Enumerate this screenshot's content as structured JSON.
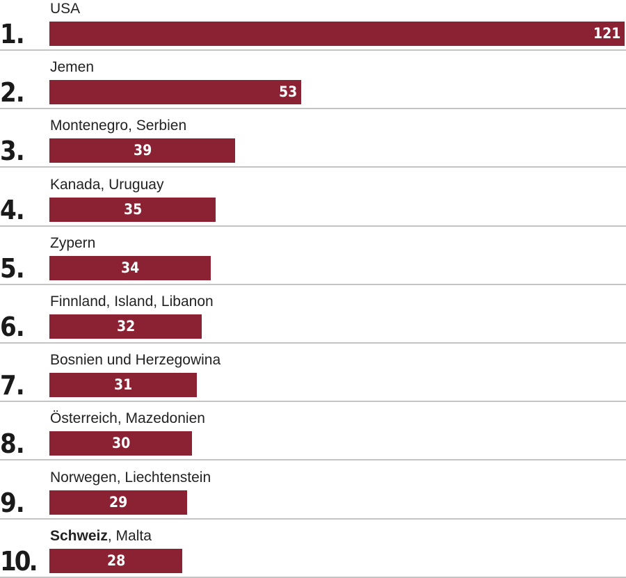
{
  "chart_data": {
    "type": "bar",
    "orientation": "horizontal",
    "categories": [
      "USA",
      "Jemen",
      "Montenegro, Serbien",
      "Kanada, Uruguay",
      "Zypern",
      "Finnland, Island, Libanon",
      "Bosnien und Herzegowina",
      "Österreich, Mazedonien",
      "Norwegen, Liechtenstein",
      "Schweiz, Malta"
    ],
    "ranks": [
      "1.",
      "2.",
      "3.",
      "4.",
      "5.",
      "6.",
      "7.",
      "8.",
      "9.",
      "10."
    ],
    "values": [
      121,
      53,
      39,
      35,
      34,
      32,
      31,
      30,
      29,
      28
    ],
    "highlight": {
      "index": 9,
      "text": "Schweiz"
    },
    "bar_color": "#8b2234",
    "value_label_color": "#ffffff",
    "separator_color": "#c4c4c4",
    "xlim": [
      0,
      121
    ],
    "grid": false,
    "legend": "none"
  }
}
